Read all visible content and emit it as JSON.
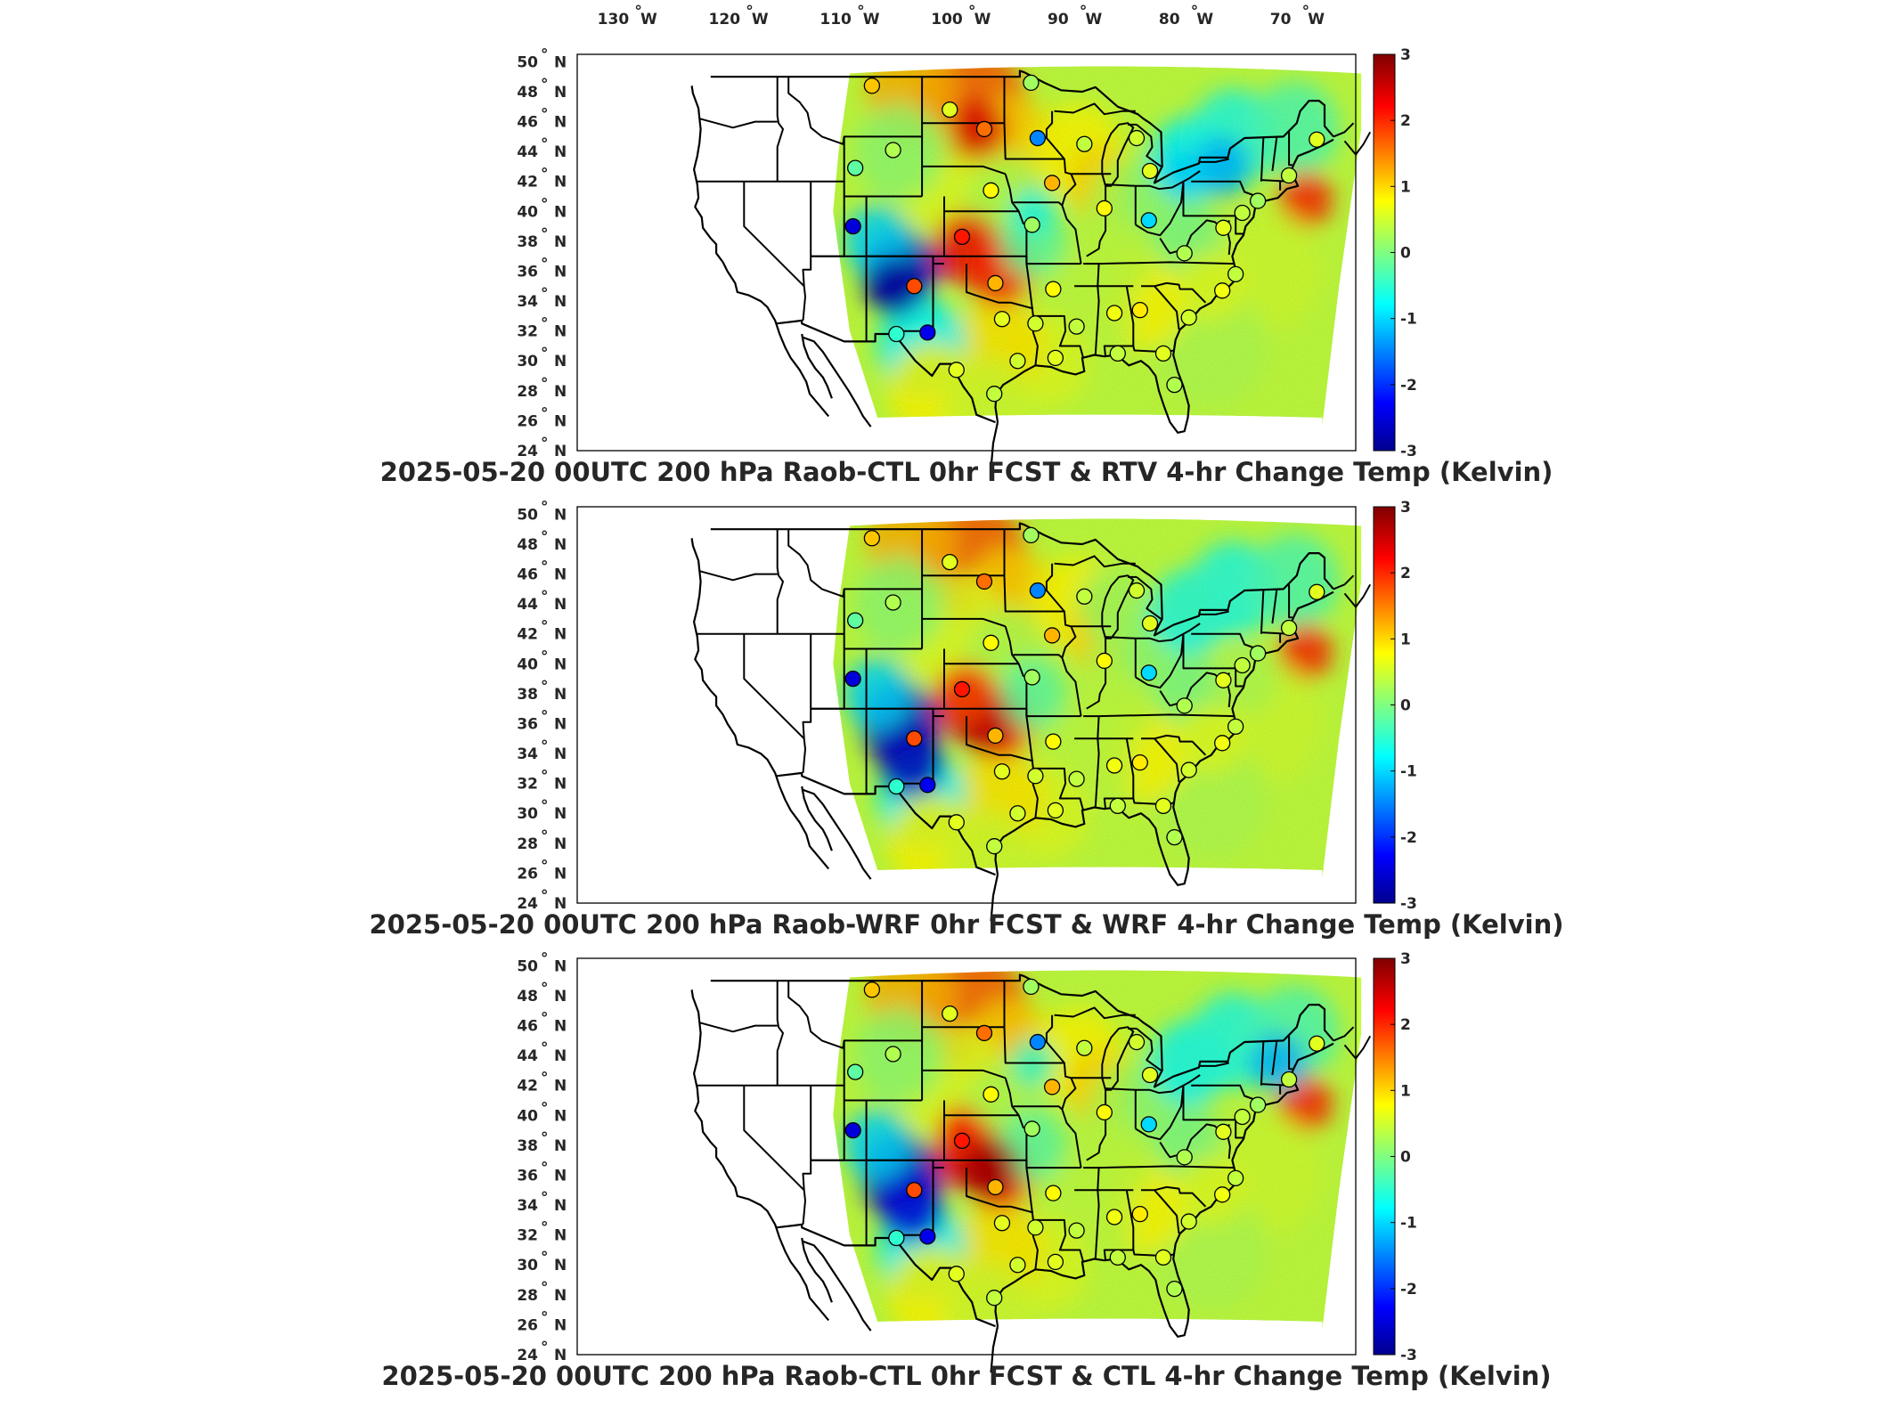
{
  "figure": {
    "lon_ticks": [
      "130",
      "120",
      "110",
      "100",
      "90",
      "80",
      "70"
    ],
    "lon_suffix": "W",
    "lat_ticks": [
      "50",
      "48",
      "46",
      "44",
      "42",
      "40",
      "38",
      "36",
      "34",
      "32",
      "30",
      "28",
      "26",
      "24"
    ],
    "lat_suffix": "N",
    "degree_symbol": "°",
    "colorbar": {
      "min": -3,
      "max": 3,
      "ticks": [
        "3",
        "2",
        "1",
        "0",
        "-1",
        "-2",
        "-3"
      ],
      "colormap": "jet",
      "colors": [
        "#00008f",
        "#0000ff",
        "#00ffff",
        "#80ff80",
        "#ffff00",
        "#ff0000",
        "#800000"
      ]
    },
    "panels": [
      {
        "title": "2025-05-20 00UTC 200 hPa Raob-CTL 0hr FCST & RTV 4-hr Change Temp (Kelvin)",
        "variant": "rtv"
      },
      {
        "title": "2025-05-20 00UTC 200 hPa Raob-WRF 0hr FCST & WRF 4-hr Change Temp (Kelvin)",
        "variant": "wrf"
      },
      {
        "title": "2025-05-20 00UTC 200 hPa Raob-CTL 0hr FCST & CTL 4-hr Change Temp (Kelvin)",
        "variant": "ctl"
      }
    ],
    "stations": [
      {
        "lon": -108.5,
        "lat": 48.4,
        "value": 1.1
      },
      {
        "lon": -101.5,
        "lat": 46.8,
        "value": 0.6
      },
      {
        "lon": -98.4,
        "lat": 45.5,
        "value": 1.6
      },
      {
        "lon": -93.6,
        "lat": 44.9,
        "value": -1.5
      },
      {
        "lon": -106.6,
        "lat": 44.1,
        "value": 0.3
      },
      {
        "lon": -94.2,
        "lat": 48.6,
        "value": 0.2
      },
      {
        "lon": -89.4,
        "lat": 44.5,
        "value": 0.4
      },
      {
        "lon": -84.7,
        "lat": 44.9,
        "value": 0.5
      },
      {
        "lon": -83.5,
        "lat": 42.7,
        "value": 0.6
      },
      {
        "lon": -110.0,
        "lat": 42.9,
        "value": -0.2
      },
      {
        "lon": -97.8,
        "lat": 41.4,
        "value": 0.8
      },
      {
        "lon": -92.3,
        "lat": 41.9,
        "value": 1.2
      },
      {
        "lon": -87.6,
        "lat": 40.2,
        "value": 0.8
      },
      {
        "lon": -83.6,
        "lat": 39.4,
        "value": -1.0
      },
      {
        "lon": -94.1,
        "lat": 39.1,
        "value": 0.2
      },
      {
        "lon": -110.2,
        "lat": 39.0,
        "value": -2.5
      },
      {
        "lon": -100.4,
        "lat": 38.3,
        "value": 2.1
      },
      {
        "lon": -104.7,
        "lat": 35.0,
        "value": 1.8
      },
      {
        "lon": -97.4,
        "lat": 35.2,
        "value": 1.2
      },
      {
        "lon": -92.2,
        "lat": 34.8,
        "value": 0.8
      },
      {
        "lon": -96.8,
        "lat": 32.8,
        "value": 0.6
      },
      {
        "lon": -93.8,
        "lat": 32.5,
        "value": 0.5
      },
      {
        "lon": -90.1,
        "lat": 32.3,
        "value": 0.4
      },
      {
        "lon": -86.7,
        "lat": 33.2,
        "value": 0.7
      },
      {
        "lon": -84.4,
        "lat": 33.4,
        "value": 0.9
      },
      {
        "lon": -80.0,
        "lat": 32.9,
        "value": 0.5
      },
      {
        "lon": -77.0,
        "lat": 34.7,
        "value": 0.7
      },
      {
        "lon": -80.4,
        "lat": 37.2,
        "value": 0.3
      },
      {
        "lon": -76.9,
        "lat": 38.9,
        "value": 0.6
      },
      {
        "lon": -75.2,
        "lat": 39.9,
        "value": 0.4
      },
      {
        "lon": -73.8,
        "lat": 40.7,
        "value": 0.2
      },
      {
        "lon": -71.0,
        "lat": 42.4,
        "value": 0.4
      },
      {
        "lon": -68.5,
        "lat": 44.8,
        "value": 0.6
      },
      {
        "lon": -106.3,
        "lat": 31.8,
        "value": -0.5
      },
      {
        "lon": -103.5,
        "lat": 31.9,
        "value": -2.4
      },
      {
        "lon": -97.5,
        "lat": 27.8,
        "value": 0.4
      },
      {
        "lon": -100.9,
        "lat": 29.4,
        "value": 0.6
      },
      {
        "lon": -95.4,
        "lat": 30.0,
        "value": 0.5
      },
      {
        "lon": -92.0,
        "lat": 30.2,
        "value": 0.6
      },
      {
        "lon": -86.4,
        "lat": 30.5,
        "value": 0.4
      },
      {
        "lon": -82.3,
        "lat": 30.5,
        "value": 0.6
      },
      {
        "lon": -81.3,
        "lat": 28.4,
        "value": 0.3
      },
      {
        "lon": -75.8,
        "lat": 35.8,
        "value": 0.4
      }
    ]
  }
}
